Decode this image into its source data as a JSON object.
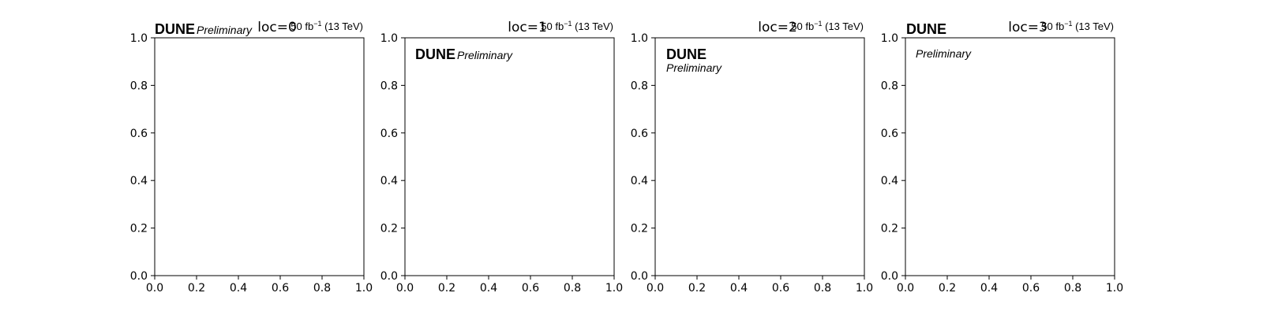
{
  "chart_data": [
    {
      "type": "scatter",
      "title": "loc=0",
      "lumi_label": {
        "value": "50",
        "unit": "fb",
        "exponent": "−1",
        "energy": "(13 TeV)"
      },
      "experiment_label": "DUNE",
      "status_label": "Preliminary",
      "label_loc": 0,
      "xlim": [
        0,
        1
      ],
      "ylim": [
        0,
        1
      ],
      "xticks": [
        "0.0",
        "0.2",
        "0.4",
        "0.6",
        "0.8",
        "1.0"
      ],
      "yticks": [
        "0.0",
        "0.2",
        "0.4",
        "0.6",
        "0.8",
        "1.0"
      ],
      "xlabel": "",
      "ylabel": "",
      "series": [],
      "grid": false
    },
    {
      "type": "scatter",
      "title": "loc=1",
      "lumi_label": {
        "value": "50",
        "unit": "fb",
        "exponent": "−1",
        "energy": "(13 TeV)"
      },
      "experiment_label": "DUNE",
      "status_label": "Preliminary",
      "label_loc": 1,
      "xlim": [
        0,
        1
      ],
      "ylim": [
        0,
        1
      ],
      "xticks": [
        "0.0",
        "0.2",
        "0.4",
        "0.6",
        "0.8",
        "1.0"
      ],
      "yticks": [
        "0.0",
        "0.2",
        "0.4",
        "0.6",
        "0.8",
        "1.0"
      ],
      "xlabel": "",
      "ylabel": "",
      "series": [],
      "grid": false
    },
    {
      "type": "scatter",
      "title": "loc=2",
      "lumi_label": {
        "value": "50",
        "unit": "fb",
        "exponent": "−1",
        "energy": "(13 TeV)"
      },
      "experiment_label": "DUNE",
      "status_label": "Preliminary",
      "label_loc": 2,
      "xlim": [
        0,
        1
      ],
      "ylim": [
        0,
        1
      ],
      "xticks": [
        "0.0",
        "0.2",
        "0.4",
        "0.6",
        "0.8",
        "1.0"
      ],
      "yticks": [
        "0.0",
        "0.2",
        "0.4",
        "0.6",
        "0.8",
        "1.0"
      ],
      "xlabel": "",
      "ylabel": "",
      "series": [],
      "grid": false
    },
    {
      "type": "scatter",
      "title": "loc=3",
      "lumi_label": {
        "value": "50",
        "unit": "fb",
        "exponent": "−1",
        "energy": "(13 TeV)"
      },
      "experiment_label": "DUNE",
      "status_label": "Preliminary",
      "label_loc": 3,
      "xlim": [
        0,
        1
      ],
      "ylim": [
        0,
        1
      ],
      "xticks": [
        "0.0",
        "0.2",
        "0.4",
        "0.6",
        "0.8",
        "1.0"
      ],
      "yticks": [
        "0.0",
        "0.2",
        "0.4",
        "0.6",
        "0.8",
        "1.0"
      ],
      "xlabel": "",
      "ylabel": "",
      "series": [],
      "grid": false
    }
  ]
}
